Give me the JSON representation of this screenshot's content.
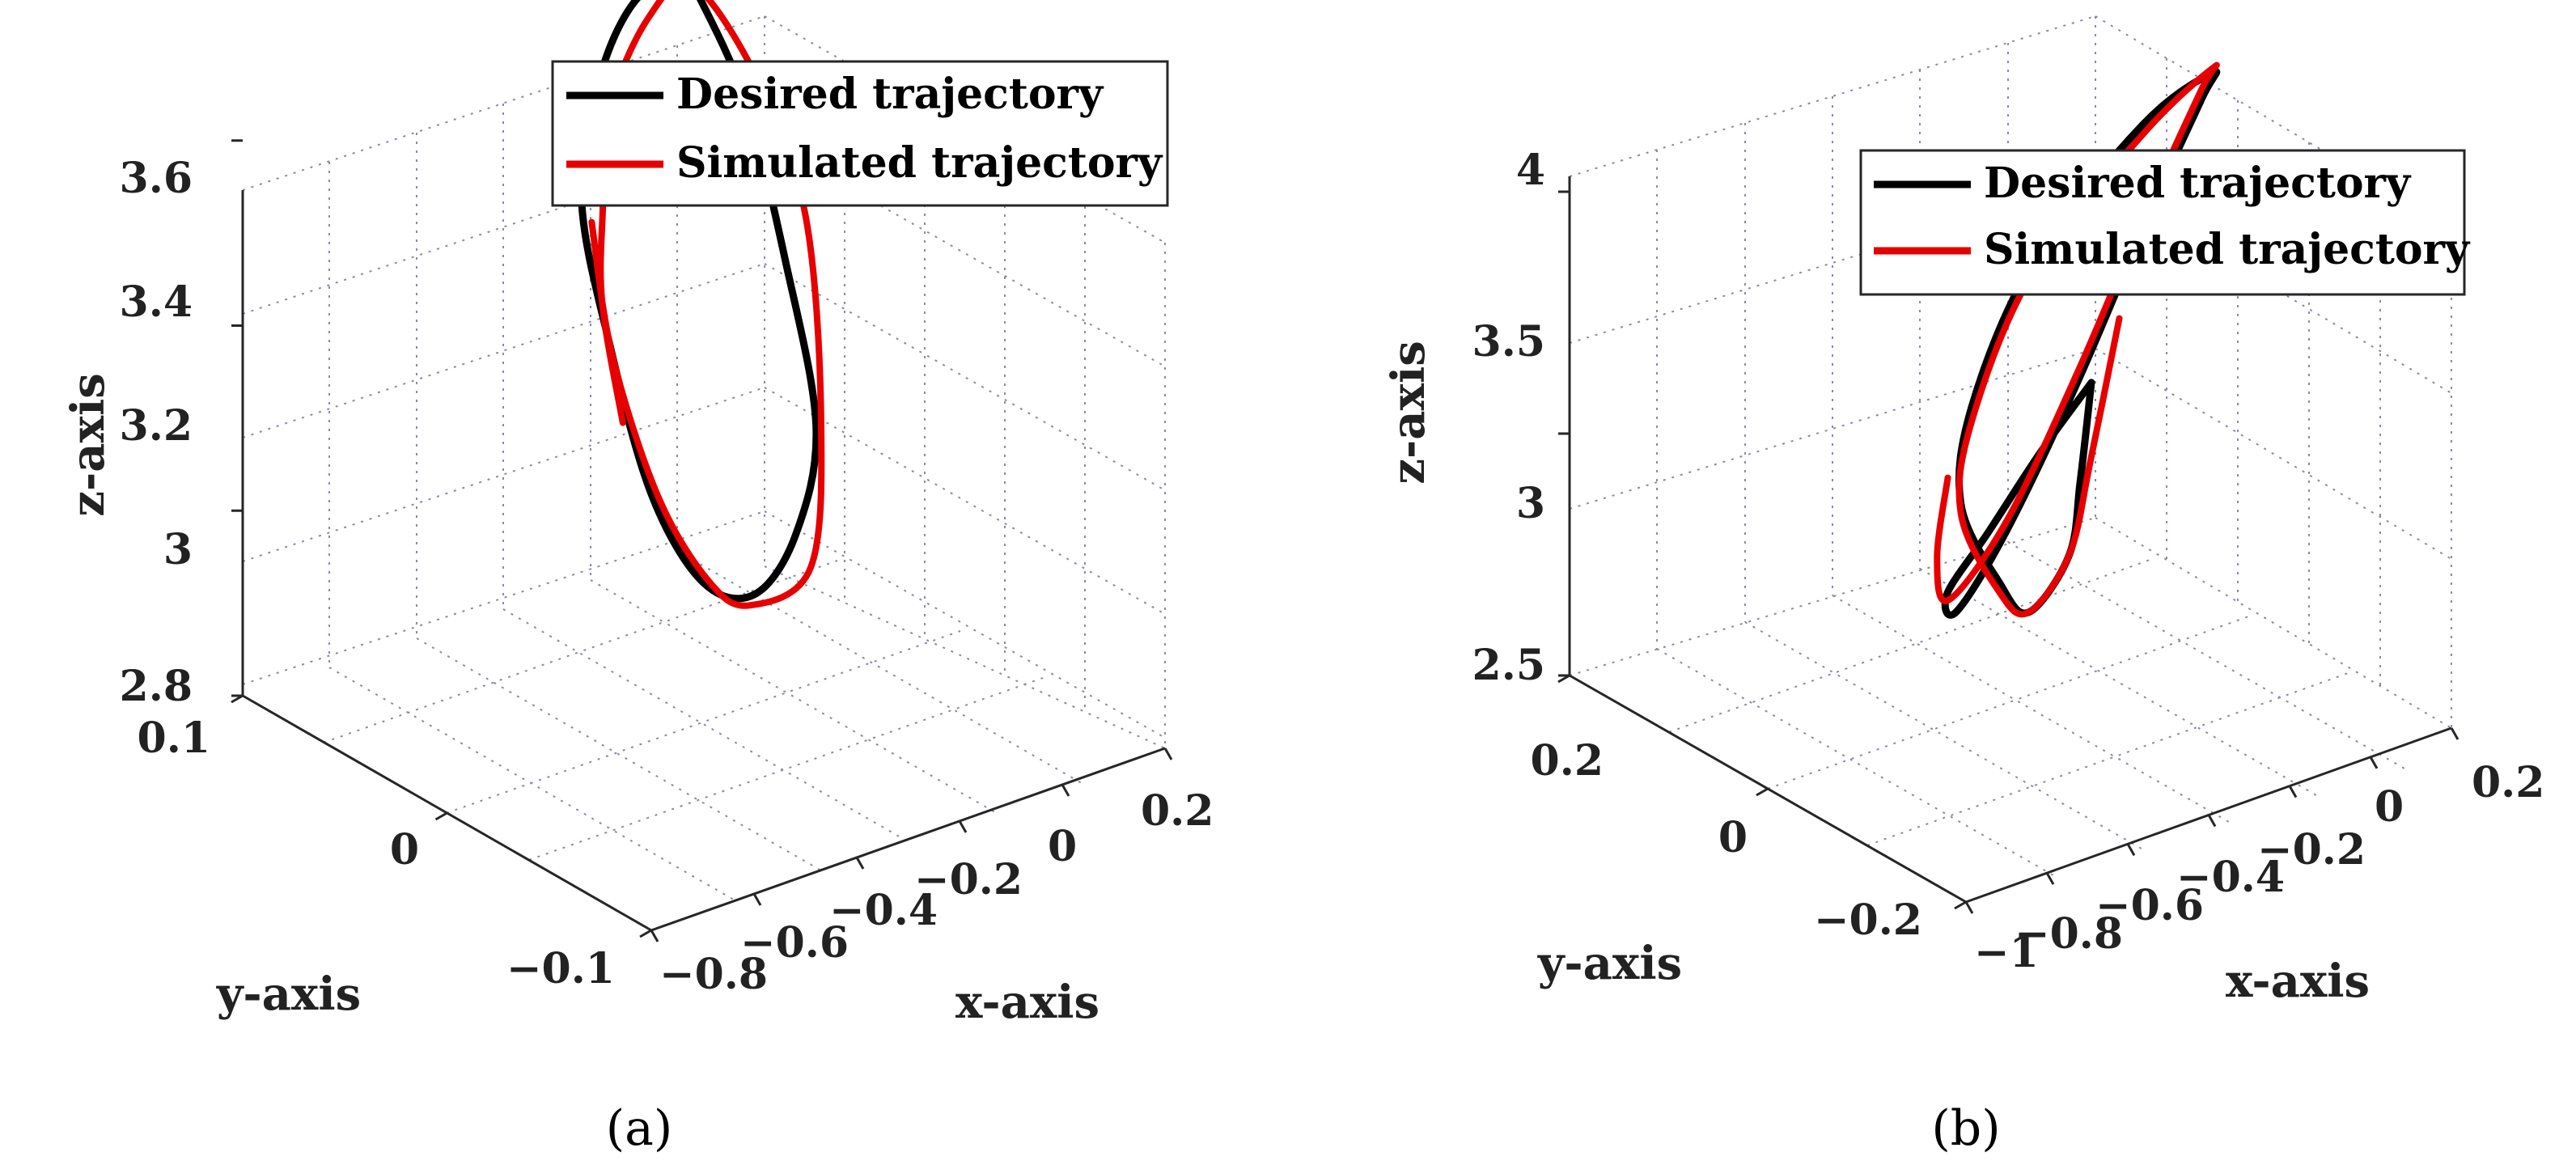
{
  "chart_data": [
    {
      "type": "line",
      "subtype": "3d-line",
      "panel_label": "(a)",
      "xlabel": "x-axis",
      "ylabel": "y-axis",
      "zlabel": "z-axis",
      "xlim": [
        -0.8,
        0.2
      ],
      "ylim": [
        -0.1,
        0.1
      ],
      "zlim": [
        2.8,
        3.6
      ],
      "x_ticks": [
        "−0.8",
        "−0.6",
        "−0.4",
        "−0.2",
        "0",
        "0.2"
      ],
      "y_ticks": [
        "−0.1",
        "0",
        "0.1"
      ],
      "z_ticks": [
        "2.8",
        "3",
        "3.2",
        "3.4",
        "3.6"
      ],
      "legend": [
        "Desired trajectory",
        "Simulated trajectory"
      ],
      "grid": true,
      "series": [
        {
          "name": "Desired trajectory",
          "color": "#000000",
          "points": [
            [
              -0.32,
              0.0,
              3.6
            ],
            [
              -0.3,
              -0.03,
              3.55
            ],
            [
              -0.28,
              -0.055,
              3.43
            ],
            [
              -0.26,
              -0.07,
              3.27
            ],
            [
              -0.26,
              -0.055,
              3.12
            ],
            [
              -0.28,
              -0.03,
              3.0
            ],
            [
              -0.3,
              0.0,
              2.95
            ],
            [
              -0.32,
              0.03,
              2.98
            ],
            [
              -0.34,
              0.055,
              3.08
            ],
            [
              -0.36,
              0.07,
              3.22
            ],
            [
              -0.36,
              0.055,
              3.38
            ],
            [
              -0.34,
              0.03,
              3.52
            ],
            [
              -0.32,
              0.0,
              3.6
            ]
          ]
        },
        {
          "name": "Simulated trajectory",
          "color": "#e60000",
          "points": [
            [
              -0.1,
              -0.09,
              2.97
            ],
            [
              -0.2,
              -0.075,
              3.14
            ],
            [
              -0.25,
              -0.062,
              3.27
            ],
            [
              -0.27,
              -0.055,
              3.38
            ],
            [
              -0.29,
              -0.03,
              3.52
            ],
            [
              -0.32,
              0.0,
              3.6
            ],
            [
              -0.35,
              0.04,
              3.55
            ],
            [
              -0.38,
              0.07,
              3.45
            ],
            [
              -0.39,
              0.08,
              3.25
            ],
            [
              -0.37,
              0.07,
              3.07
            ],
            [
              -0.33,
              0.03,
              2.97
            ],
            [
              -0.29,
              0.0,
              2.95
            ],
            [
              -0.27,
              -0.03,
              3.0
            ],
            [
              -0.26,
              -0.055,
              3.12
            ],
            [
              -0.26,
              -0.065,
              3.25
            ]
          ]
        }
      ]
    },
    {
      "type": "line",
      "subtype": "3d-line",
      "panel_label": "(b)",
      "xlabel": "x-axis",
      "ylabel": "y-axis",
      "zlabel": "z-axis",
      "xlim": [
        -1.0,
        0.2
      ],
      "ylim": [
        -0.2,
        0.2
      ],
      "zlim": [
        2.5,
        4.0
      ],
      "x_ticks": [
        "−1",
        "−0.8",
        "−0.6",
        "−0.4",
        "−0.2",
        "0",
        "0.2"
      ],
      "y_ticks": [
        "−0.2",
        "0",
        "0.2"
      ],
      "z_ticks": [
        "2.5",
        "3",
        "3.5",
        "4"
      ],
      "legend": [
        "Desired trajectory",
        "Simulated trajectory"
      ],
      "grid": true,
      "series": [
        {
          "name": "Desired trajectory",
          "color": "#000000",
          "points": [
            [
              -0.2,
              0.0,
              3.1
            ],
            [
              -0.35,
              0.05,
              3.0
            ],
            [
              -0.5,
              0.1,
              2.95
            ],
            [
              -0.65,
              0.12,
              2.9
            ],
            [
              -0.55,
              0.05,
              2.85
            ],
            [
              -0.4,
              -0.05,
              2.85
            ],
            [
              -0.25,
              -0.1,
              2.95
            ],
            [
              -0.1,
              -0.1,
              3.2
            ],
            [
              0.05,
              -0.05,
              3.5
            ],
            [
              0.1,
              0.0,
              3.65
            ],
            [
              -0.05,
              0.05,
              3.7
            ],
            [
              -0.3,
              0.1,
              3.6
            ],
            [
              -0.6,
              0.15,
              3.4
            ],
            [
              -0.85,
              0.18,
              3.2
            ],
            [
              -0.95,
              0.17,
              3.05
            ],
            [
              -0.85,
              0.12,
              3.0
            ],
            [
              -0.65,
              0.08,
              3.02
            ],
            [
              -0.4,
              0.03,
              3.05
            ],
            [
              -0.2,
              0.0,
              3.1
            ]
          ]
        },
        {
          "name": "Simulated trajectory",
          "color": "#e60000",
          "points": [
            [
              -0.18,
              0.02,
              3.25
            ],
            [
              -0.35,
              0.06,
              3.05
            ],
            [
              -0.5,
              0.1,
              2.95
            ],
            [
              -0.65,
              0.12,
              2.9
            ],
            [
              -0.55,
              0.05,
              2.83
            ],
            [
              -0.4,
              -0.05,
              2.83
            ],
            [
              -0.25,
              -0.1,
              2.92
            ],
            [
              -0.1,
              -0.1,
              3.18
            ],
            [
              0.05,
              -0.05,
              3.48
            ],
            [
              0.1,
              0.0,
              3.66
            ],
            [
              -0.05,
              0.05,
              3.72
            ],
            [
              -0.3,
              0.1,
              3.62
            ],
            [
              -0.6,
              0.15,
              3.42
            ],
            [
              -0.85,
              0.18,
              3.22
            ],
            [
              -0.97,
              0.17,
              3.08
            ],
            [
              -0.9,
              0.13,
              3.1
            ],
            [
              -0.8,
              0.1,
              3.2
            ]
          ]
        }
      ]
    }
  ]
}
